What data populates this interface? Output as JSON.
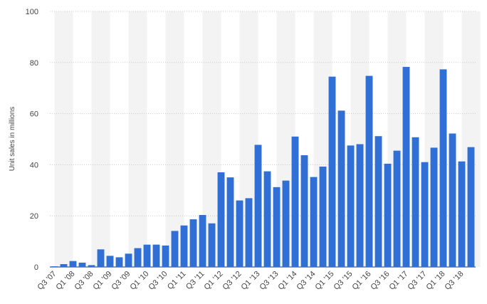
{
  "chart_data": {
    "type": "bar",
    "y_label": "Unit sales in millions",
    "categories": [
      "Q3 '07",
      null,
      "Q1 '08",
      null,
      "Q3 '08",
      null,
      "Q1 '09",
      null,
      "Q3 '09",
      null,
      "Q1 '10",
      null,
      "Q3 '10",
      null,
      "Q1 '11",
      null,
      "Q3 '11",
      null,
      "Q1 '12",
      null,
      "Q3 '12",
      null,
      "Q1 '13",
      null,
      "Q3 '13",
      null,
      "Q1 '14",
      null,
      "Q3 '14",
      null,
      "Q1 '15",
      null,
      "Q3 '15",
      null,
      "Q1 '16",
      null,
      "Q3 '16",
      null,
      "Q1 '17",
      null,
      "Q3 '17",
      null,
      "Q1 '18",
      null,
      "Q3 '18",
      null
    ],
    "values": [
      0.27,
      1.12,
      2.32,
      1.7,
      0.72,
      6.89,
      4.36,
      3.79,
      5.21,
      7.37,
      8.74,
      8.75,
      8.4,
      14.1,
      16.24,
      18.65,
      20.34,
      17.07,
      37.04,
      35.06,
      26.03,
      26.91,
      47.79,
      37.43,
      31.24,
      33.8,
      51.03,
      43.72,
      35.2,
      39.27,
      74.47,
      61.17,
      47.53,
      48.05,
      74.78,
      51.19,
      40.4,
      45.51,
      78.29,
      50.76,
      41.03,
      46.68,
      77.32,
      52.22,
      41.3,
      46.89
    ],
    "color": "#2f6fd6",
    "ylim": [
      0,
      100
    ],
    "yticks": [
      0,
      20,
      40,
      60,
      80,
      100
    ],
    "grid": true
  }
}
